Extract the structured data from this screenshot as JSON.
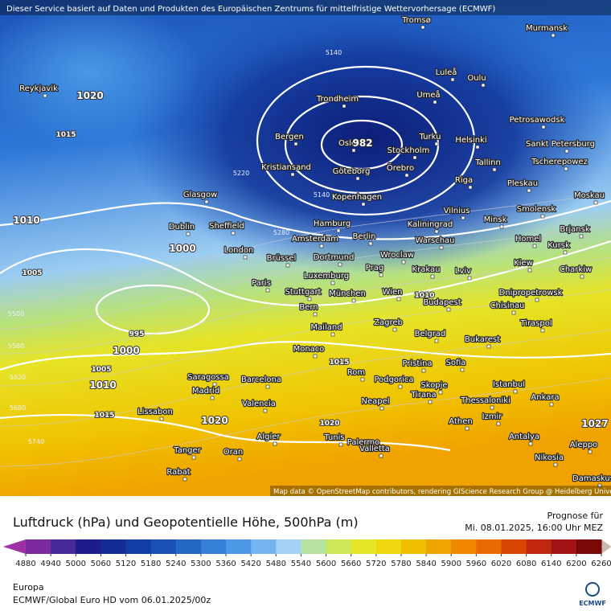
{
  "header": {
    "credit": "Dieser Service basiert auf Daten und Produkten des Europäischen Zentrums für mittelfristige Wettervorhersage (ECMWF)",
    "attribution": "Map data © OpenStreetMap contributors, rendering GIScience Research Group @ Heidelberg University"
  },
  "cities": [
    "Tromsø",
    "Murmansk",
    "Reykjavik",
    "Luleå",
    "Oulu",
    "Trondheim",
    "Umeå",
    "Petrosawodsk",
    "Bergen",
    "Oslo",
    "Stockholm",
    "Turku",
    "Helsinki",
    "Sankt Petersburg",
    "Kristiansand",
    "Göteborg",
    "Örebro",
    "Tallinn",
    "Tscherepowez",
    "Glasgow",
    "Riga",
    "Pleskau",
    "Moskau",
    "Kopenhagen",
    "Dublin",
    "Sheffield",
    "Hamburg",
    "Vilnius",
    "Smolensk",
    "Minsk",
    "Kaliningrad",
    "Brjansk",
    "Amsterdam",
    "Berlin",
    "Warschau",
    "Homel",
    "Kursk",
    "London",
    "Dortmund",
    "Wroclaw",
    "Brüssel",
    "Prag",
    "Krakau",
    "Kiew",
    "Charkiw",
    "Luxemburg",
    "Lviv",
    "Paris",
    "Stuttgart",
    "München",
    "Wien",
    "Dnipropetrowsk",
    "Budapest",
    "Chisinau",
    "Bern",
    "Mailand",
    "Zagreb",
    "Tiraspol",
    "Belgrad",
    "Bukarest",
    "Monaco",
    "Pristina",
    "Sofia",
    "Saragossa",
    "Barcelona",
    "Rom",
    "Podgorica",
    "Skopje",
    "Istanbul",
    "Madrid",
    "Neapel",
    "Tirana",
    "Thessaloniki",
    "Ankara",
    "Valencia",
    "Lissabon",
    "Izmir",
    "Athen",
    "Palermo",
    "Tunis",
    "Algier",
    "Valletta",
    "Antalya",
    "Aleppo",
    "Tanger",
    "Oran",
    "Nikosia",
    "Rabat",
    "Damaskus"
  ],
  "isobar_labels": [
    "1020",
    "982",
    "1010",
    "1000",
    "1000",
    "1010",
    "1020",
    "1027",
    "1015",
    "1005",
    "995",
    "1010",
    "1015",
    "1005",
    "5140",
    "5140",
    "5220",
    "5280",
    "5500",
    "5560",
    "5620",
    "5680",
    "5740",
    "1020",
    "1015"
  ],
  "legend": {
    "title": "Luftdruck (hPa) und Geopotentielle Höhe, 500hPa (m)",
    "forecast_label": "Prognose für",
    "forecast_time": "Mi. 08.01.2025, 16:00 Uhr MEZ",
    "region": "Europa",
    "model": "ECMWF/Global Euro HD vom  06.01.2025/00z",
    "logo": "ECMWF",
    "colorbar": {
      "ticks": [
        4880,
        4940,
        5000,
        5060,
        5120,
        5180,
        5240,
        5300,
        5360,
        5420,
        5480,
        5540,
        5600,
        5660,
        5720,
        5780,
        5840,
        5900,
        5960,
        6020,
        6080,
        6140,
        6200,
        6260
      ],
      "colors": [
        "#7a2a9e",
        "#4a2a9a",
        "#1c1c8c",
        "#142c96",
        "#103ea4",
        "#1852b4",
        "#2468c6",
        "#3680d8",
        "#4c98e6",
        "#74b4f0",
        "#a4d2f6",
        "#b4e4a0",
        "#cce858",
        "#e6e628",
        "#f0d810",
        "#f0c000",
        "#f0a400",
        "#f08800",
        "#e86a00",
        "#d84800",
        "#c02810",
        "#a01414",
        "#7a0808"
      ],
      "under_color": "#a030a8",
      "over_color": "#c8b8b0"
    }
  }
}
